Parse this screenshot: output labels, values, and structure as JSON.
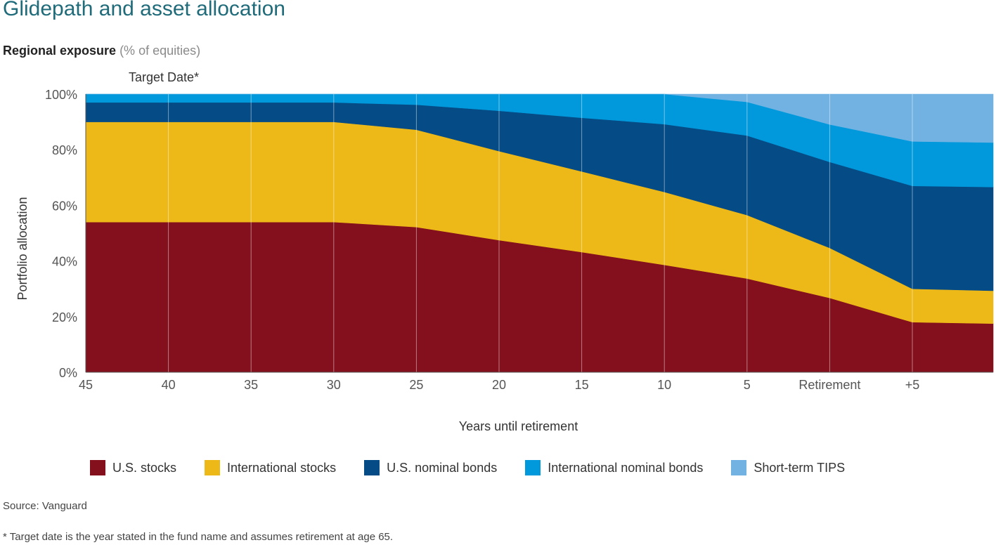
{
  "page": {
    "title": "Glidepath and asset allocation",
    "subtitle_bold": "Regional exposure",
    "subtitle_note": "(% of equities)",
    "source": "Source: Vanguard",
    "footnote": "* Target date is the year stated in the fund name and assumes retirement at age 65."
  },
  "chart_data": {
    "type": "area",
    "stacked": true,
    "annotation": "Target Date*",
    "xlabel": "Years until retirement",
    "ylabel": "Portfolio allocation",
    "ylim": [
      0,
      100
    ],
    "yticks": [
      "0%",
      "20%",
      "40%",
      "60%",
      "80%",
      "100%"
    ],
    "categories": [
      "45",
      "40",
      "35",
      "30",
      "25",
      "20",
      "15",
      "10",
      "5",
      "Retirement",
      "+5",
      ""
    ],
    "grid": true,
    "legend_position": "bottom",
    "series": [
      {
        "name": "U.S. stocks",
        "color": "#83101c",
        "values": [
          54,
          54,
          54,
          54,
          52.2,
          47.5,
          43.2,
          38.6,
          33.7,
          26.7,
          18,
          17.5
        ]
      },
      {
        "name": "International stocks",
        "color": "#edb918",
        "values": [
          36,
          36,
          36,
          36,
          35,
          32,
          29,
          26.2,
          22.8,
          18,
          12,
          11.8
        ]
      },
      {
        "name": "U.S. nominal bonds",
        "color": "#054b86",
        "values": [
          7,
          7,
          7,
          7,
          9,
          14.5,
          19.3,
          24.4,
          28.6,
          30.9,
          37,
          37.3
        ]
      },
      {
        "name": "International nominal bonds",
        "color": "#0199db",
        "values": [
          3,
          3,
          3,
          3,
          3.8,
          6,
          8.5,
          10.8,
          12.1,
          13.5,
          16,
          16
        ]
      },
      {
        "name": "Short-term TIPS",
        "color": "#71b2e2",
        "values": [
          0,
          0,
          0,
          0,
          0,
          0,
          0,
          0,
          2.8,
          10.9,
          17,
          17.4
        ]
      }
    ]
  }
}
